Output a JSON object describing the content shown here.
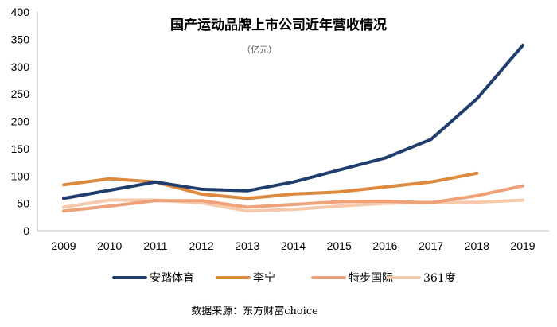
{
  "chart_data": {
    "type": "line",
    "title": "国产运动品牌上市公司近年营收情况",
    "unit": "（亿元）",
    "source": "数据来源：东方财富choice",
    "categories": [
      "2009",
      "2010",
      "2011",
      "2012",
      "2013",
      "2014",
      "2015",
      "2016",
      "2017",
      "2018",
      "2019"
    ],
    "ylim": [
      0,
      400
    ],
    "yticks": [
      0,
      50,
      100,
      150,
      200,
      250,
      300,
      350,
      400
    ],
    "grid": false,
    "legend_position": "bottom",
    "series": [
      {
        "name": "安踏体育",
        "color": "#1f3e6e",
        "values": [
          59,
          74,
          89,
          76,
          73,
          89,
          111,
          133,
          167,
          241,
          339
        ]
      },
      {
        "name": "李宁",
        "color": "#dd8a3f",
        "values": [
          84,
          95,
          89,
          67,
          59,
          67,
          71,
          80,
          89,
          105,
          null
        ]
      },
      {
        "name": "特步国际",
        "color": "#efa27a",
        "values": [
          36,
          45,
          55,
          55,
          43,
          48,
          53,
          54,
          51,
          64,
          82
        ]
      },
      {
        "name": "361度",
        "color": "#f6c9ad",
        "values": [
          43,
          56,
          56,
          51,
          36,
          39,
          45,
          50,
          52,
          52,
          56
        ]
      }
    ]
  }
}
